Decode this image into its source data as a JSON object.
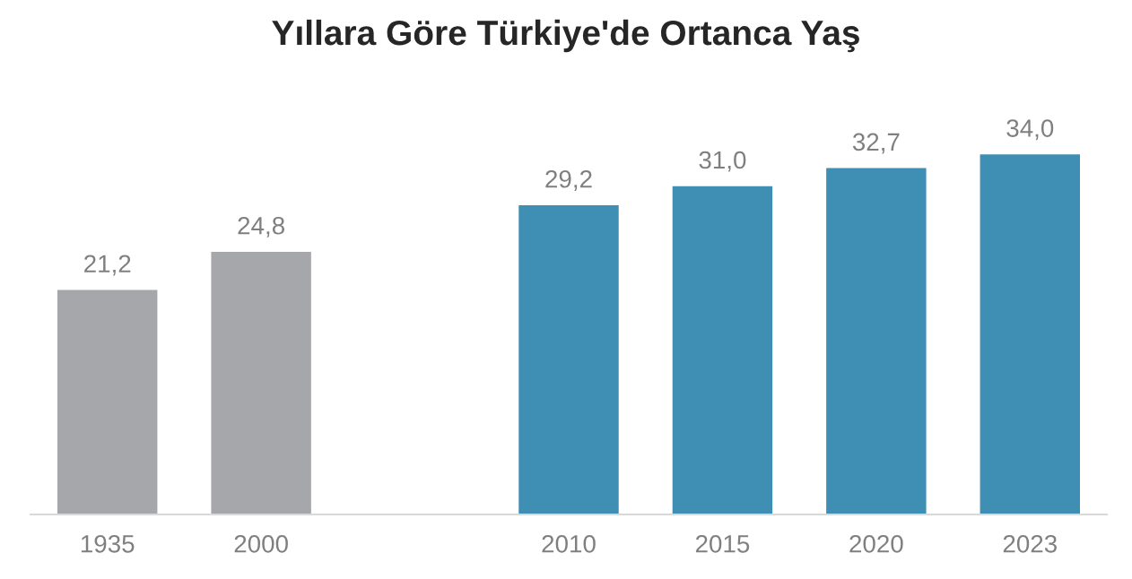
{
  "chart_data": {
    "type": "bar",
    "title": "Yıllara Göre Türkiye'de Ortanca Yaş",
    "categories": [
      "1935",
      "2000",
      null,
      "2010",
      "2015",
      "2020",
      "2023"
    ],
    "values": [
      21.2,
      24.8,
      null,
      29.2,
      31.0,
      32.7,
      34.0
    ],
    "value_labels": [
      "21,2",
      "24,8",
      null,
      "29,2",
      "31,0",
      "32,7",
      "34,0"
    ],
    "colors": [
      "#a6a7aa",
      "#a6a7aa",
      null,
      "#3f8eb3",
      "#3f8eb3",
      "#3f8eb3",
      "#3f8eb3"
    ],
    "grid": false,
    "legend": false
  }
}
